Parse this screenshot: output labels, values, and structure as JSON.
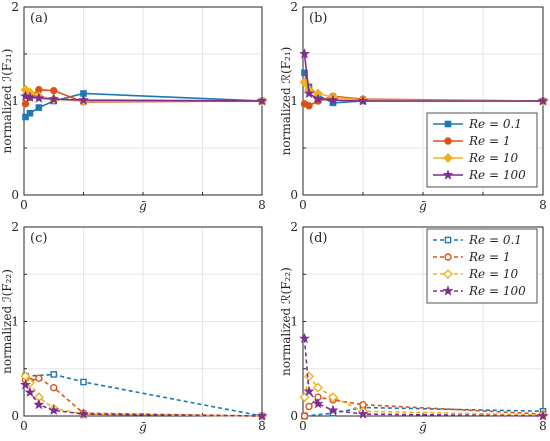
{
  "chart_data": [
    {
      "type": "line",
      "panel_label": "(a)",
      "ylabel": "normalized ℐ(F₂₁)",
      "xlabel": "",
      "xlim": [
        0,
        8
      ],
      "ylim": [
        0,
        2
      ],
      "xticks": [
        "0",
        "8"
      ],
      "yticks": [
        "0",
        "1",
        "2"
      ],
      "xlabel_mid": "ḡ",
      "grid": true,
      "line_style": "solid",
      "legend": null,
      "series": [
        {
          "name": "Re = 0.1",
          "color": "#1f77b4",
          "marker": "square",
          "x": [
            0.05,
            0.2,
            0.5,
            1.0,
            2.0,
            8.0
          ],
          "y": [
            0.83,
            0.87,
            0.93,
            1.0,
            1.08,
            1.0
          ]
        },
        {
          "name": "Re = 1",
          "color": "#d95319",
          "marker": "circle",
          "x": [
            0.05,
            0.2,
            0.5,
            1.0,
            2.0,
            8.0
          ],
          "y": [
            0.97,
            1.04,
            1.12,
            1.11,
            0.99,
            1.0
          ]
        },
        {
          "name": "Re = 10",
          "color": "#f2b01e",
          "marker": "diamond",
          "x": [
            0.05,
            0.2,
            0.5,
            1.0,
            2.0,
            8.0
          ],
          "y": [
            1.12,
            1.09,
            1.05,
            1.02,
            1.0,
            1.0
          ]
        },
        {
          "name": "Re = 100",
          "color": "#7e2f8e",
          "marker": "star",
          "x": [
            0.05,
            0.2,
            0.5,
            1.0,
            2.0,
            8.0
          ],
          "y": [
            1.05,
            1.04,
            1.03,
            1.02,
            1.01,
            1.0
          ]
        }
      ]
    },
    {
      "type": "line",
      "panel_label": "(b)",
      "ylabel": "normalized ℛ(F₂₁)",
      "xlim": [
        0,
        8
      ],
      "ylim": [
        0,
        2
      ],
      "xticks": [
        "0",
        "8"
      ],
      "yticks": [
        "0",
        "1",
        "2"
      ],
      "xlabel_mid": "ḡ",
      "grid": true,
      "line_style": "solid",
      "legend": "center-right",
      "series": [
        {
          "name": "Re = 0.1",
          "color": "#1f77b4",
          "marker": "square",
          "x": [
            0.05,
            0.2,
            0.5,
            1.0,
            2.0,
            8.0
          ],
          "y": [
            1.3,
            1.15,
            1.06,
            0.98,
            1.0,
            1.0
          ]
        },
        {
          "name": "Re = 1",
          "color": "#d95319",
          "marker": "circle",
          "x": [
            0.05,
            0.2,
            0.5,
            1.0,
            2.0,
            8.0
          ],
          "y": [
            0.97,
            0.95,
            1.0,
            1.05,
            1.02,
            1.0
          ]
        },
        {
          "name": "Re = 10",
          "color": "#f2b01e",
          "marker": "diamond",
          "x": [
            0.05,
            0.2,
            0.5,
            1.0,
            2.0,
            8.0
          ],
          "y": [
            1.2,
            1.12,
            1.08,
            1.04,
            1.01,
            1.0
          ]
        },
        {
          "name": "Re = 100",
          "color": "#7e2f8e",
          "marker": "star",
          "x": [
            0.05,
            0.2,
            0.5,
            1.0,
            2.0,
            8.0
          ],
          "y": [
            1.5,
            1.08,
            1.02,
            1.01,
            1.0,
            1.0
          ]
        }
      ]
    },
    {
      "type": "line",
      "panel_label": "(c)",
      "ylabel": "normalized ℐ(F₂₂)",
      "xlim": [
        0,
        8
      ],
      "ylim": [
        0,
        2
      ],
      "xticks": [
        "0",
        "8"
      ],
      "yticks": [
        "0",
        "1",
        "2"
      ],
      "xlabel_mid": "ḡ",
      "grid": true,
      "line_style": "dashed",
      "legend": null,
      "series": [
        {
          "name": "Re = 0.1",
          "color": "#1f77b4",
          "marker": "square",
          "x": [
            0.05,
            1.0,
            2.0,
            8.0
          ],
          "y": [
            0.42,
            0.44,
            0.36,
            0.0
          ]
        },
        {
          "name": "Re = 1",
          "color": "#d95319",
          "marker": "circle",
          "x": [
            0.05,
            0.2,
            0.5,
            1.0,
            2.0,
            8.0
          ],
          "y": [
            0.38,
            0.37,
            0.4,
            0.3,
            0.03,
            0.0
          ]
        },
        {
          "name": "Re = 10",
          "color": "#f2b01e",
          "marker": "diamond",
          "x": [
            0.05,
            0.2,
            0.5,
            1.0,
            2.0,
            8.0
          ],
          "y": [
            0.42,
            0.35,
            0.2,
            0.08,
            0.02,
            0.0
          ]
        },
        {
          "name": "Re = 100",
          "color": "#7e2f8e",
          "marker": "star",
          "x": [
            0.05,
            0.2,
            0.5,
            1.0,
            2.0,
            8.0
          ],
          "y": [
            0.33,
            0.25,
            0.12,
            0.06,
            0.02,
            0.0
          ]
        }
      ]
    },
    {
      "type": "line",
      "panel_label": "(d)",
      "ylabel": "normalized ℛ(F₂₂)",
      "xlim": [
        0,
        8
      ],
      "ylim": [
        0,
        2
      ],
      "xticks": [
        "0",
        "8"
      ],
      "yticks": [
        "0",
        "1",
        "2"
      ],
      "xlabel_mid": "ḡ",
      "grid": true,
      "line_style": "dashed",
      "legend": "top-right",
      "series": [
        {
          "name": "Re = 0.1",
          "color": "#1f77b4",
          "marker": "square",
          "x": [
            0.05,
            1.0,
            2.0,
            8.0
          ],
          "y": [
            0.0,
            0.03,
            0.09,
            0.05
          ]
        },
        {
          "name": "Re = 1",
          "color": "#d95319",
          "marker": "circle",
          "x": [
            0.05,
            0.2,
            0.5,
            1.0,
            2.0,
            8.0
          ],
          "y": [
            0.0,
            0.1,
            0.2,
            0.17,
            0.12,
            0.02
          ]
        },
        {
          "name": "Re = 10",
          "color": "#f2b01e",
          "marker": "diamond",
          "x": [
            0.05,
            0.2,
            0.5,
            1.0,
            2.0,
            8.0
          ],
          "y": [
            0.2,
            0.42,
            0.3,
            0.2,
            0.05,
            0.01
          ]
        },
        {
          "name": "Re = 100",
          "color": "#7e2f8e",
          "marker": "star",
          "x": [
            0.05,
            0.2,
            0.5,
            1.0,
            2.0,
            8.0
          ],
          "y": [
            0.82,
            0.26,
            0.13,
            0.06,
            0.02,
            0.0
          ]
        }
      ]
    }
  ],
  "legend_labels": [
    "Re = 0.1",
    "Re = 1",
    "Re = 10",
    "Re = 100"
  ]
}
